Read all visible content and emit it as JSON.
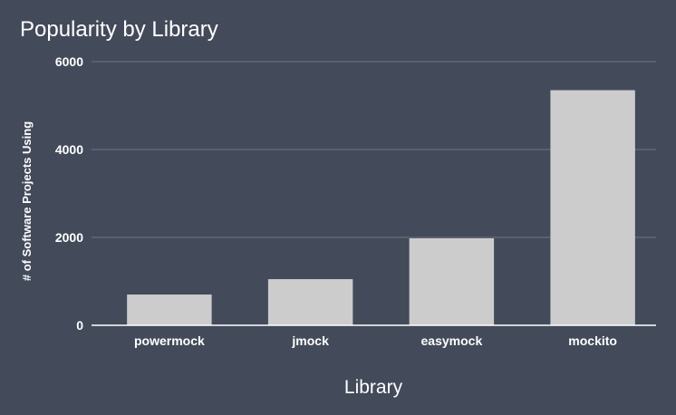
{
  "chart_data": {
    "type": "bar",
    "title": "Popularity by Library",
    "xlabel": "Library",
    "ylabel": "# of Software Projects Using",
    "categories": [
      "powermock",
      "jmock",
      "easymock",
      "mockito"
    ],
    "values": [
      700,
      1050,
      1980,
      5350
    ],
    "ylim": [
      0,
      6000
    ],
    "yticks": [
      0,
      2000,
      4000,
      6000
    ],
    "grid": true,
    "legend": "none"
  },
  "colors": {
    "background": "#434a5a",
    "bar": "#cccccc",
    "text": "#ffffff",
    "grid": "#6e7484"
  }
}
